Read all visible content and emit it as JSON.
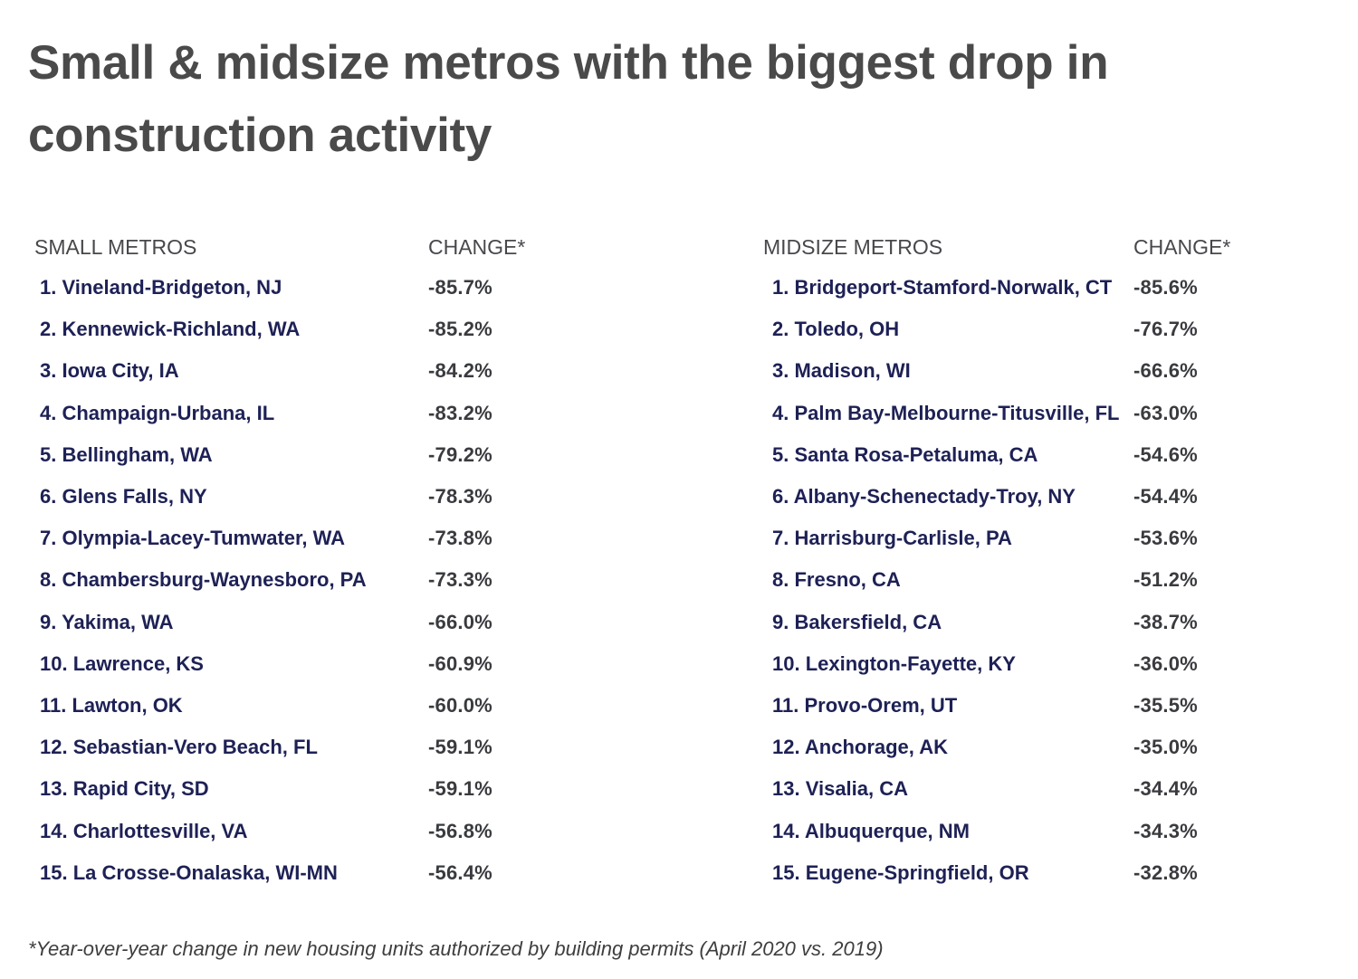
{
  "page": {
    "title": "Small & midsize metros with the biggest drop in construction activity",
    "footnote": "*Year-over-year change in new housing units authorized by building permits (April 2020 vs. 2019)"
  },
  "colors": {
    "background": "#ffffff",
    "title_text": "#4a4a4a",
    "column_header_text": "#47484b",
    "metro_name_text": "#1e2155",
    "change_value_text": "#3a3b3f",
    "footnote_text": "#3e3e3e"
  },
  "tables": [
    {
      "header": "SMALL METROS",
      "change_header": "CHANGE*",
      "rows": [
        {
          "label": "1. Vineland-Bridgeton, NJ",
          "change": "-85.7%"
        },
        {
          "label": "2. Kennewick-Richland, WA",
          "change": "-85.2%"
        },
        {
          "label": "3. Iowa City, IA",
          "change": "-84.2%"
        },
        {
          "label": "4. Champaign-Urbana, IL",
          "change": "-83.2%"
        },
        {
          "label": "5. Bellingham, WA",
          "change": "-79.2%"
        },
        {
          "label": "6. Glens Falls, NY",
          "change": "-78.3%"
        },
        {
          "label": "7. Olympia-Lacey-Tumwater, WA",
          "change": "-73.8%"
        },
        {
          "label": "8. Chambersburg-Waynesboro, PA",
          "change": "-73.3%"
        },
        {
          "label": "9. Yakima, WA",
          "change": "-66.0%"
        },
        {
          "label": "10. Lawrence, KS",
          "change": "-60.9%"
        },
        {
          "label": "11. Lawton, OK",
          "change": "-60.0%"
        },
        {
          "label": "12. Sebastian-Vero Beach, FL",
          "change": "-59.1%"
        },
        {
          "label": "13. Rapid City, SD",
          "change": "-59.1%"
        },
        {
          "label": "14. Charlottesville, VA",
          "change": "-56.8%"
        },
        {
          "label": "15. La Crosse-Onalaska, WI-MN",
          "change": "-56.4%"
        }
      ]
    },
    {
      "header": "MIDSIZE METROS",
      "change_header": "CHANGE*",
      "rows": [
        {
          "label": "1. Bridgeport-Stamford-Norwalk, CT",
          "change": "-85.6%"
        },
        {
          "label": "2. Toledo, OH",
          "change": "-76.7%"
        },
        {
          "label": "3. Madison, WI",
          "change": "-66.6%"
        },
        {
          "label": "4. Palm Bay-Melbourne-Titusville, FL",
          "change": "-63.0%"
        },
        {
          "label": "5. Santa Rosa-Petaluma, CA",
          "change": "-54.6%"
        },
        {
          "label": "6. Albany-Schenectady-Troy, NY",
          "change": "-54.4%"
        },
        {
          "label": "7. Harrisburg-Carlisle, PA",
          "change": "-53.6%"
        },
        {
          "label": "8. Fresno, CA",
          "change": "-51.2%"
        },
        {
          "label": "9. Bakersfield, CA",
          "change": "-38.7%"
        },
        {
          "label": "10. Lexington-Fayette, KY",
          "change": "-36.0%"
        },
        {
          "label": "11. Provo-Orem, UT",
          "change": "-35.5%"
        },
        {
          "label": "12. Anchorage, AK",
          "change": "-35.0%"
        },
        {
          "label": "13. Visalia, CA",
          "change": "-34.4%"
        },
        {
          "label": "14. Albuquerque, NM",
          "change": "-34.3%"
        },
        {
          "label": "15. Eugene-Springfield, OR",
          "change": "-32.8%"
        }
      ]
    }
  ],
  "chart_data": [
    {
      "type": "table",
      "title": "Small & midsize metros with the biggest drop in construction activity",
      "columns": [
        "SMALL METROS",
        "CHANGE*"
      ],
      "rows": [
        [
          "Vineland-Bridgeton, NJ",
          -85.7
        ],
        [
          "Kennewick-Richland, WA",
          -85.2
        ],
        [
          "Iowa City, IA",
          -84.2
        ],
        [
          "Champaign-Urbana, IL",
          -83.2
        ],
        [
          "Bellingham, WA",
          -79.2
        ],
        [
          "Glens Falls, NY",
          -78.3
        ],
        [
          "Olympia-Lacey-Tumwater, WA",
          -73.8
        ],
        [
          "Chambersburg-Waynesboro, PA",
          -73.3
        ],
        [
          "Yakima, WA",
          -66.0
        ],
        [
          "Lawrence, KS",
          -60.9
        ],
        [
          "Lawton, OK",
          -60.0
        ],
        [
          "Sebastian-Vero Beach, FL",
          -59.1
        ],
        [
          "Rapid City, SD",
          -59.1
        ],
        [
          "Charlottesville, VA",
          -56.8
        ],
        [
          "La Crosse-Onalaska, WI-MN",
          -56.4
        ]
      ],
      "annotation": "*Year-over-year change in new housing units authorized by building permits (April 2020 vs. 2019)"
    },
    {
      "type": "table",
      "title": "Small & midsize metros with the biggest drop in construction activity",
      "columns": [
        "MIDSIZE METROS",
        "CHANGE*"
      ],
      "rows": [
        [
          "Bridgeport-Stamford-Norwalk, CT",
          -85.6
        ],
        [
          "Toledo, OH",
          -76.7
        ],
        [
          "Madison, WI",
          -66.6
        ],
        [
          "Palm Bay-Melbourne-Titusville, FL",
          -63.0
        ],
        [
          "Santa Rosa-Petaluma, CA",
          -54.6
        ],
        [
          "Albany-Schenectady-Troy, NY",
          -54.4
        ],
        [
          "Harrisburg-Carlisle, PA",
          -53.6
        ],
        [
          "Fresno, CA",
          -51.2
        ],
        [
          "Bakersfield, CA",
          -38.7
        ],
        [
          "Lexington-Fayette, KY",
          -36.0
        ],
        [
          "Provo-Orem, UT",
          -35.5
        ],
        [
          "Anchorage, AK",
          -35.0
        ],
        [
          "Visalia, CA",
          -34.4
        ],
        [
          "Albuquerque, NM",
          -34.3
        ],
        [
          "Eugene-Springfield, OR",
          -32.8
        ]
      ],
      "annotation": "*Year-over-year change in new housing units authorized by building permits (April 2020 vs. 2019)"
    }
  ]
}
